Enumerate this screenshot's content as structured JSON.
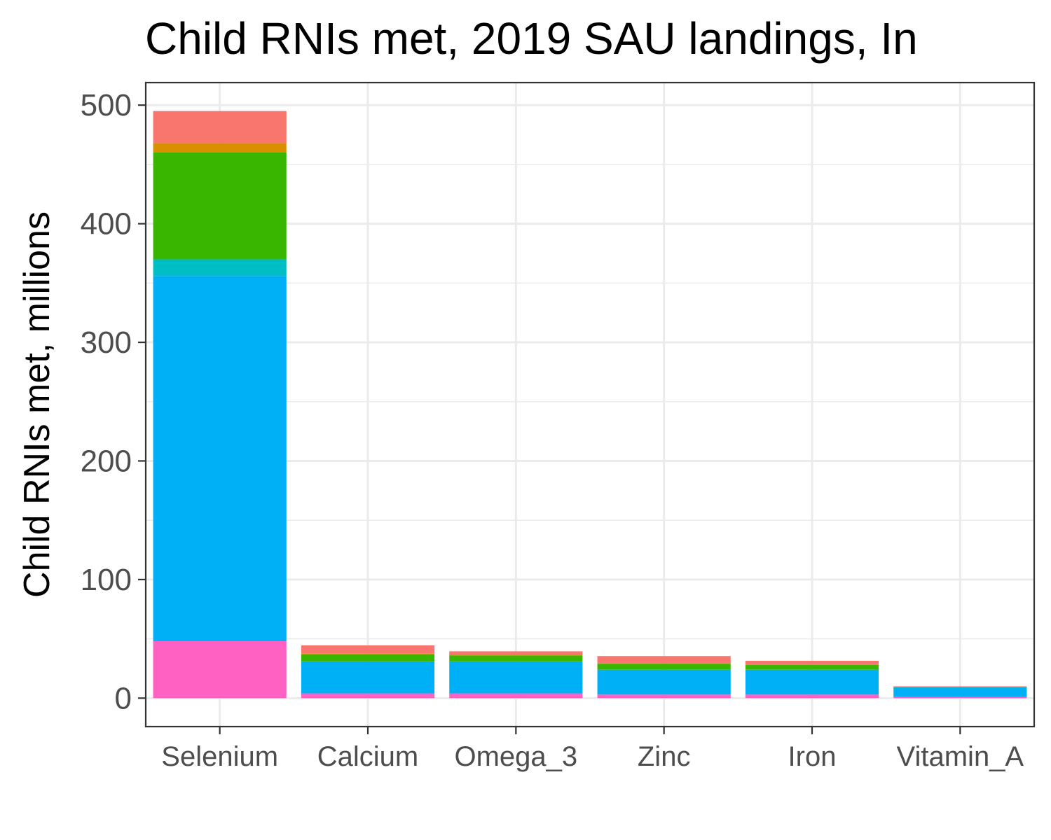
{
  "chart_data": {
    "type": "bar",
    "stacked": true,
    "title": "Child RNIs met, 2019 SAU landings, In",
    "xlabel": "",
    "ylabel": "Child RNIs met, millions",
    "ylim": [
      -24,
      519
    ],
    "yticks": [
      0,
      100,
      200,
      300,
      400,
      500
    ],
    "grid": true,
    "legend": "none",
    "categories": [
      "Selenium",
      "Calcium",
      "Omega_3",
      "Zinc",
      "Iron",
      "Vitamin_A"
    ],
    "series": [
      {
        "color": "#FF61C3",
        "values": [
          48,
          4,
          4,
          3,
          3,
          1
        ]
      },
      {
        "color": "#00B0F6",
        "values": [
          308,
          27,
          27,
          21,
          21,
          8
        ]
      },
      {
        "color": "#00BFC4",
        "values": [
          14,
          0,
          0,
          0,
          0,
          0
        ]
      },
      {
        "color": "#39B600",
        "values": [
          90,
          6,
          5,
          5,
          4,
          0.5
        ]
      },
      {
        "color": "#D89000",
        "values": [
          8,
          0.5,
          0.5,
          0.5,
          0.5,
          0.2
        ]
      },
      {
        "color": "#F8766D",
        "values": [
          27,
          7,
          3,
          6,
          3,
          0.3
        ]
      }
    ]
  }
}
